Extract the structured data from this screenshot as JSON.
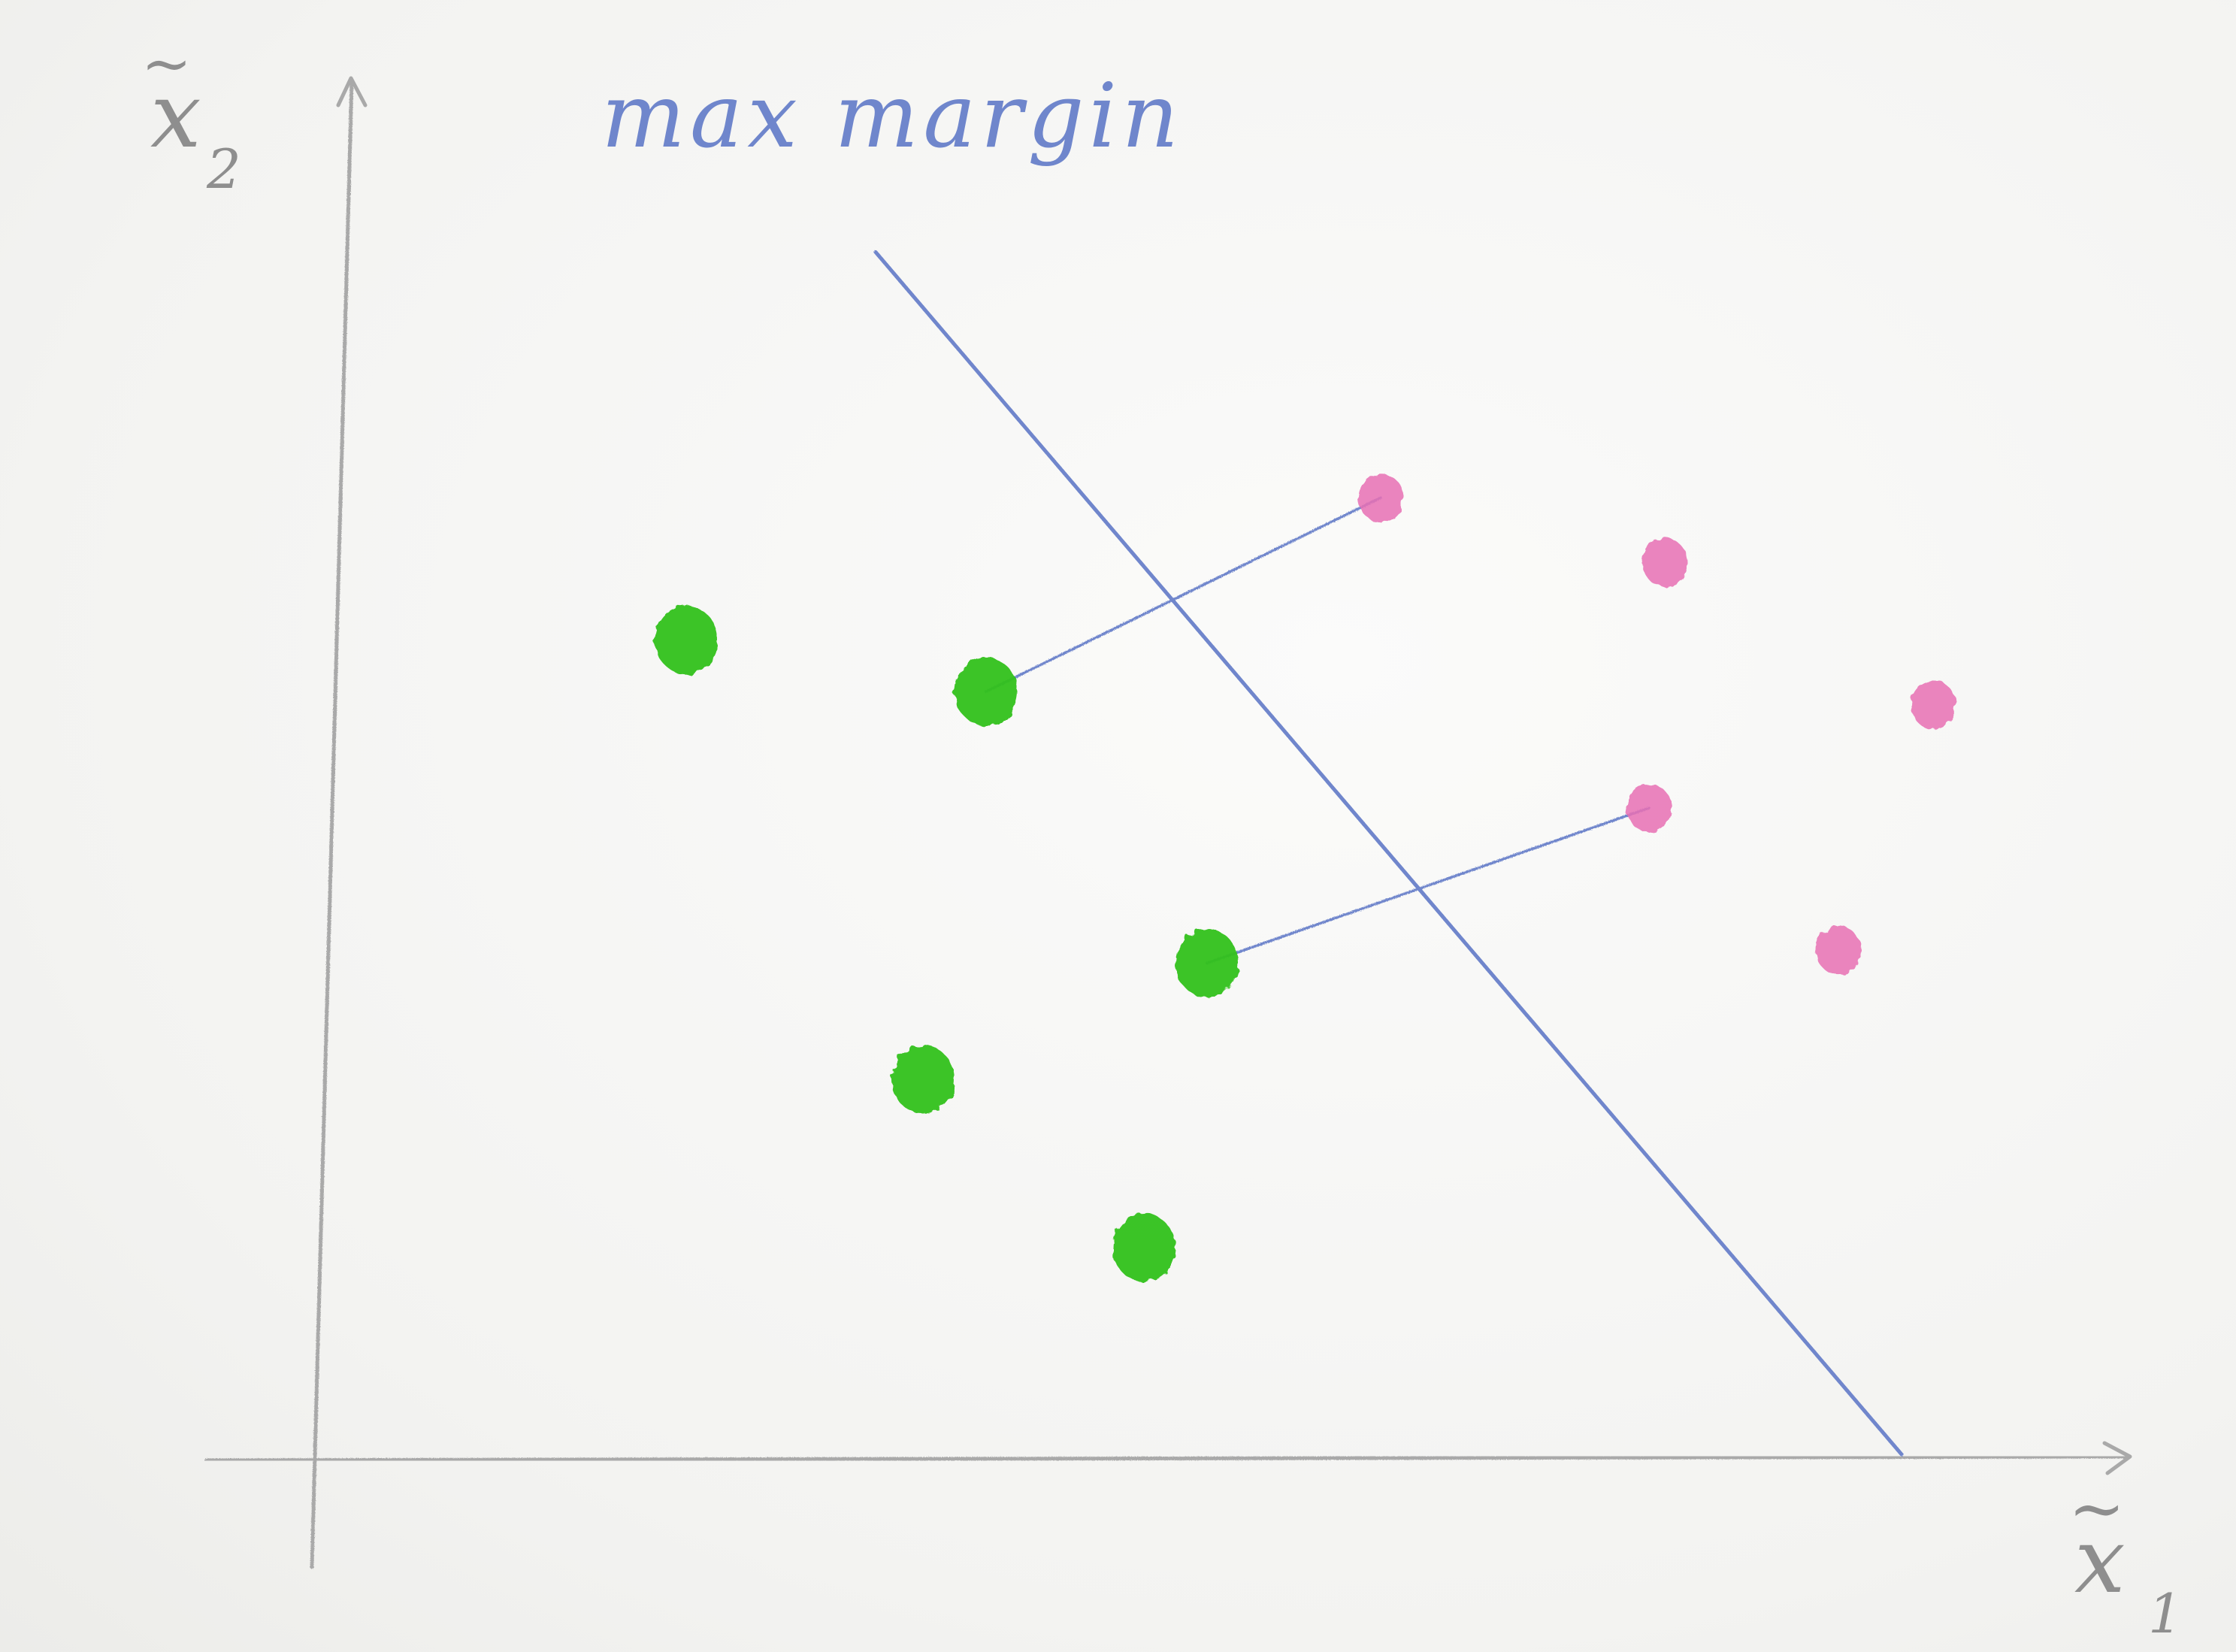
{
  "title": "max margin",
  "axes": {
    "x_label": "x",
    "x_subscript": "1",
    "y_label": "x",
    "y_subscript": "2",
    "tilde": "~"
  },
  "colors": {
    "axis": "#a9a9a9",
    "boundary": "#6f86cc",
    "class_a": "#33c21a",
    "class_b": "#e86fb4"
  },
  "chart_data": {
    "type": "scatter",
    "title": "max margin",
    "xlabel": "x̃1",
    "ylabel": "x̃2",
    "xlim": [
      0,
      10
    ],
    "ylim": [
      0,
      10
    ],
    "grid": false,
    "series": [
      {
        "color": "#33c21a",
        "points": [
          [
            2.3,
            6.3
          ],
          [
            4.2,
            5.9
          ],
          [
            3.8,
            2.9
          ],
          [
            5.6,
            3.8
          ],
          [
            5.2,
            1.6
          ]
        ]
      },
      {
        "color": "#e86fb4",
        "points": [
          [
            6.7,
            7.4
          ],
          [
            8.5,
            6.9
          ],
          [
            10.2,
            5.8
          ],
          [
            8.4,
            5.0
          ],
          [
            9.6,
            3.9
          ]
        ]
      }
    ],
    "decision_boundary": [
      [
        3.5,
        9.3
      ],
      [
        10.0,
        0.0
      ]
    ],
    "margin_segments": [
      [
        [
          4.2,
          5.9
        ],
        [
          6.7,
          7.4
        ]
      ],
      [
        [
          5.6,
          3.8
        ],
        [
          8.4,
          5.0
        ]
      ]
    ]
  }
}
